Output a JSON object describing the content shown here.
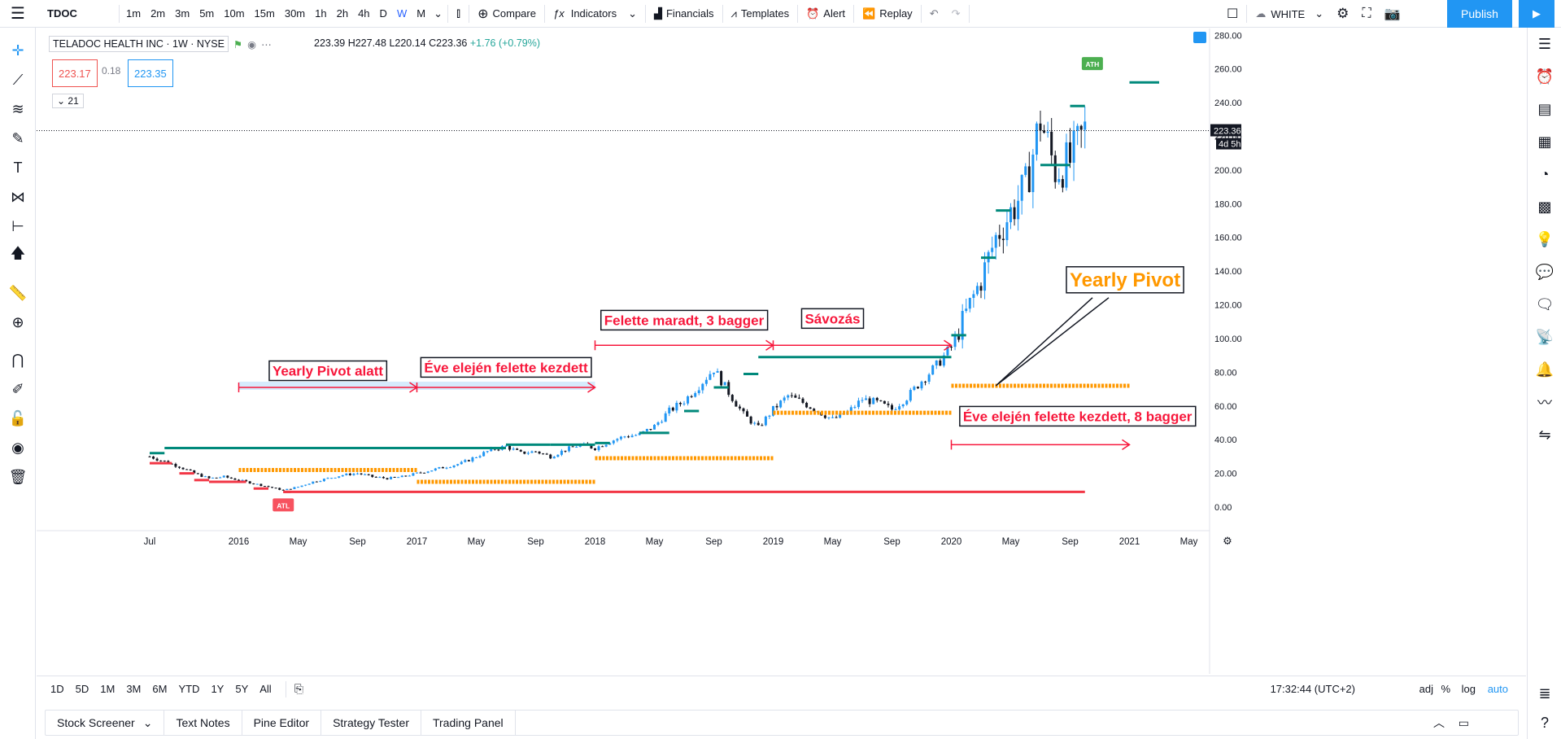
{
  "toolbar": {
    "symbol": "TDOC",
    "timeframes": [
      "1m",
      "2m",
      "3m",
      "5m",
      "10m",
      "15m",
      "30m",
      "1h",
      "2h",
      "4h",
      "D",
      "W",
      "M"
    ],
    "active_timeframe": "W",
    "compare_label": "Compare",
    "indicators_label": "Indicators",
    "financials_label": "Financials",
    "templates_label": "Templates",
    "alert_label": "Alert",
    "replay_label": "Replay",
    "theme_label": "WHITE",
    "publish_label": "Publish"
  },
  "legend": {
    "title": "TELADOC HEALTH INC · 1W · NYSE",
    "ohlc": "223.39 H227.48 L220.14 C223.36",
    "change": "+1.76 (+0.79%)",
    "bid": "223.17",
    "spread": "0.18",
    "ask": "223.35",
    "study_count": "21"
  },
  "price_axis": {
    "ticks": [
      "280.00",
      "260.00",
      "240.00",
      "220.00",
      "200.00",
      "180.00",
      "160.00",
      "140.00",
      "120.00",
      "100.00",
      "80.00",
      "60.00",
      "40.00",
      "20.00",
      "0.00"
    ],
    "last_price": "223.36",
    "countdown": "4d 5h"
  },
  "time_axis": {
    "ticks": [
      "Jul",
      "2016",
      "May",
      "Sep",
      "2017",
      "May",
      "Sep",
      "2018",
      "May",
      "Sep",
      "2019",
      "May",
      "Sep",
      "2020",
      "May",
      "Sep",
      "2021",
      "May"
    ]
  },
  "annotations": {
    "ath": "ATH",
    "atl": "ATL",
    "yearly_pivot_below": "Yearly Pivot alatt",
    "start_above_2017": "Éve elején felette kezdett",
    "stayed_above": "Felette maradt, 3 bagger",
    "banding": "Sávozás",
    "yearly_pivot": "Yearly Pivot",
    "start_above_2020": "Éve elején felette kezdett, 8 bagger"
  },
  "range_bar": {
    "ranges": [
      "1D",
      "5D",
      "1M",
      "3M",
      "6M",
      "YTD",
      "1Y",
      "5Y",
      "All"
    ],
    "clock": "17:32:44 (UTC+2)",
    "adj": "adj",
    "percent": "%",
    "log": "log",
    "auto": "auto"
  },
  "panels": [
    "Stock Screener",
    "Text Notes",
    "Pine Editor",
    "Strategy Tester",
    "Trading Panel"
  ],
  "colors": {
    "up": "#2196f3",
    "down": "#131722",
    "pivot_resistance": "#00897b",
    "pivot_support": "#f23645",
    "yearly_pivot": "#ff9800",
    "annotation_text": "#f7173b",
    "accent": "#2196f3"
  },
  "chart_data": {
    "type": "candlestick",
    "title": "TELADOC HEALTH INC · 1W · NYSE",
    "ylim": [
      -14,
      284
    ],
    "price_close_series": [
      [
        "2015-07",
        30
      ],
      [
        "2015-08",
        27
      ],
      [
        "2015-09",
        24
      ],
      [
        "2015-10",
        20
      ],
      [
        "2015-11",
        17
      ],
      [
        "2015-12",
        18
      ],
      [
        "2016-01",
        16
      ],
      [
        "2016-02",
        14
      ],
      [
        "2016-03",
        12
      ],
      [
        "2016-04",
        10
      ],
      [
        "2016-05",
        12
      ],
      [
        "2016-06",
        15
      ],
      [
        "2016-07",
        17
      ],
      [
        "2016-08",
        19
      ],
      [
        "2016-09",
        20
      ],
      [
        "2016-10",
        18
      ],
      [
        "2016-11",
        17
      ],
      [
        "2016-12",
        18
      ],
      [
        "2017-01",
        20
      ],
      [
        "2017-02",
        22
      ],
      [
        "2017-03",
        24
      ],
      [
        "2017-04",
        26
      ],
      [
        "2017-05",
        30
      ],
      [
        "2017-06",
        34
      ],
      [
        "2017-07",
        36
      ],
      [
        "2017-08",
        32
      ],
      [
        "2017-09",
        33
      ],
      [
        "2017-10",
        30
      ],
      [
        "2017-11",
        34
      ],
      [
        "2017-12",
        37
      ],
      [
        "2018-01",
        35
      ],
      [
        "2018-02",
        39
      ],
      [
        "2018-03",
        42
      ],
      [
        "2018-04",
        43
      ],
      [
        "2018-05",
        48
      ],
      [
        "2018-06",
        57
      ],
      [
        "2018-07",
        63
      ],
      [
        "2018-08",
        72
      ],
      [
        "2018-09",
        82
      ],
      [
        "2018-10",
        68
      ],
      [
        "2018-11",
        55
      ],
      [
        "2018-12",
        47
      ],
      [
        "2019-01",
        58
      ],
      [
        "2019-02",
        66
      ],
      [
        "2019-03",
        62
      ],
      [
        "2019-04",
        57
      ],
      [
        "2019-05",
        52
      ],
      [
        "2019-06",
        56
      ],
      [
        "2019-07",
        64
      ],
      [
        "2019-08",
        62
      ],
      [
        "2019-09",
        58
      ],
      [
        "2019-10",
        65
      ],
      [
        "2019-11",
        75
      ],
      [
        "2019-12",
        84
      ],
      [
        "2020-01",
        95
      ],
      [
        "2020-02",
        115
      ],
      [
        "2020-03",
        135
      ],
      [
        "2020-04",
        160
      ],
      [
        "2020-05",
        175
      ],
      [
        "2020-06",
        190
      ],
      [
        "2020-07",
        230
      ],
      [
        "2020-08",
        200
      ],
      [
        "2020-09",
        205
      ],
      [
        "2020-10",
        223.36
      ]
    ],
    "ath": 253,
    "atl": 9,
    "yearly_pivots": [
      {
        "year": "2015",
        "resistance": 35,
        "support": 25
      },
      {
        "year": "2016",
        "pivot": 22
      },
      {
        "year": "2017",
        "pivot": 15
      },
      {
        "year": "2018",
        "pivot": 29
      },
      {
        "year": "2019",
        "pivot": 56
      },
      {
        "year": "2020",
        "pivot": 72
      }
    ]
  }
}
